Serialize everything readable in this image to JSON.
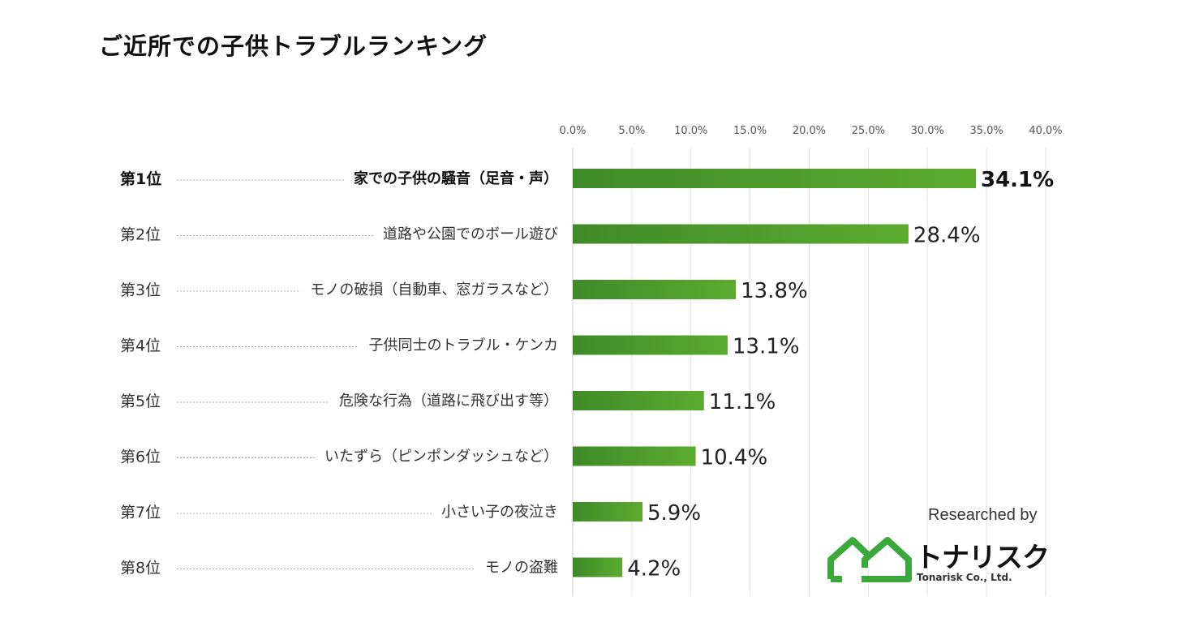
{
  "title": "ご近所での子供トラブルランキング",
  "chart_data": {
    "type": "bar",
    "orientation": "horizontal",
    "title": "ご近所での子供トラブルランキング",
    "xlim": [
      0,
      40
    ],
    "ticks": [
      "0.0%",
      "5.0%",
      "10.0%",
      "15.0%",
      "20.0%",
      "25.0%",
      "30.0%",
      "35.0%",
      "40.0%"
    ],
    "tick_values": [
      0,
      5,
      10,
      15,
      20,
      25,
      30,
      35,
      40
    ],
    "grid": true,
    "ranks": [
      "第1位",
      "第2位",
      "第3位",
      "第4位",
      "第5位",
      "第6位",
      "第7位",
      "第8位"
    ],
    "categories": [
      "家での子供の騒音（足音・声）",
      "道路や公園でのボール遊び",
      "モノの破損（自動車、窓ガラスなど）",
      "子供同士のトラブル・ケンカ",
      "危険な行為（道路に飛び出す等）",
      "いたずら（ピンポンダッシュなど）",
      "小さい子の夜泣き",
      "モノの盗難"
    ],
    "values": [
      34.1,
      28.4,
      13.8,
      13.1,
      11.1,
      10.4,
      5.9,
      4.2
    ],
    "value_labels": [
      "34.1%",
      "28.4%",
      "13.8%",
      "13.1%",
      "11.1%",
      "10.4%",
      "5.9%",
      "4.2%"
    ],
    "bar_color": "#4a9a2c"
  },
  "credit": {
    "researched_by": "Researched by",
    "brand": "トナリスク",
    "brand_en": "Tonarisk Co., Ltd.",
    "logo_color": "#3aa83a"
  }
}
